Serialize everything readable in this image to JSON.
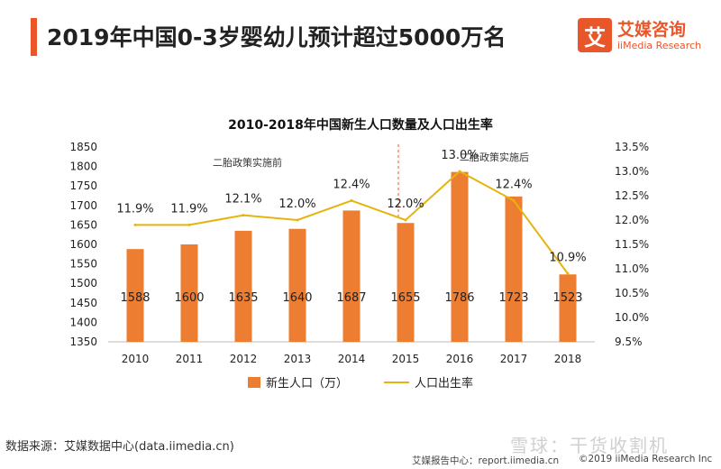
{
  "header": {
    "title": "2019年中国0-3岁婴幼儿预计超过5000万名",
    "logo_mark": "艾",
    "logo_cn": "艾媒咨询",
    "logo_en": "iiMedia Research",
    "accent_color": "#e8562a"
  },
  "chart_data": {
    "type": "bar",
    "title": "2010-2018年中国新生人口数量及人口出生率",
    "categories": [
      "2010",
      "2011",
      "2012",
      "2013",
      "2014",
      "2015",
      "2016",
      "2017",
      "2018"
    ],
    "series": [
      {
        "name": "新生人口（万）",
        "type": "bar",
        "axis": "left",
        "color": "#ed7d31",
        "values": [
          1588,
          1600,
          1635,
          1640,
          1687,
          1655,
          1786,
          1723,
          1523
        ],
        "labels": [
          "1588",
          "1600",
          "1635",
          "1640",
          "1687",
          "1655",
          "1786",
          "1723",
          "1523"
        ]
      },
      {
        "name": "人口出生率",
        "type": "line",
        "axis": "right",
        "color": "#e5b40e",
        "values": [
          11.9,
          11.9,
          12.1,
          12.0,
          12.4,
          12.0,
          13.0,
          12.4,
          10.9
        ],
        "labels": [
          "11.9%",
          "11.9%",
          "12.1%",
          "12.0%",
          "12.4%",
          "12.0%",
          "13.0%",
          "12.4%",
          "10.9%"
        ]
      }
    ],
    "y_left": {
      "min": 1350,
      "max": 1850,
      "ticks": [
        "1350",
        "1400",
        "1450",
        "1500",
        "1550",
        "1600",
        "1650",
        "1700",
        "1750",
        "1800",
        "1850"
      ]
    },
    "y_right": {
      "min": 9.5,
      "max": 13.5,
      "ticks": [
        "9.5%",
        "10.0%",
        "10.5%",
        "11.0%",
        "11.5%",
        "12.0%",
        "12.5%",
        "13.0%",
        "13.5%"
      ]
    },
    "annotations": {
      "before": "二胎政策实施前",
      "after": "二胎政策实施后",
      "divider_category": "2015"
    },
    "grid": false,
    "legend": "bottom"
  },
  "footer": {
    "source": "数据来源：艾媒数据中心(data.iimedia.cn)",
    "report": "艾媒报告中心：report.iimedia.cn",
    "copyright": "©2019  iiMedia Research  Inc",
    "watermark": "雪球：干货收割机"
  }
}
